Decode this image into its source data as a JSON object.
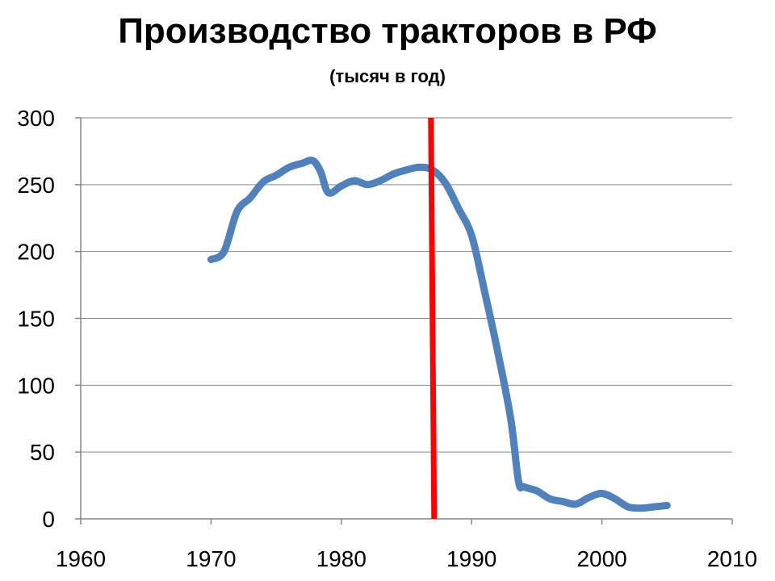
{
  "chart_data": {
    "type": "line",
    "title": "Производство тракторов в РФ",
    "subtitle": "(тысяч в год)",
    "xlabel": "",
    "ylabel": "",
    "xlim": [
      1960,
      2010
    ],
    "ylim": [
      0,
      300
    ],
    "x_ticks": [
      1960,
      1970,
      1980,
      1990,
      2000,
      2010
    ],
    "y_ticks": [
      0,
      50,
      100,
      150,
      200,
      250,
      300
    ],
    "grid": true,
    "legend": "none",
    "series": [
      {
        "color": "#4F81BD",
        "x": [
          1970,
          1971,
          1972,
          1973,
          1974,
          1975,
          1976,
          1977,
          1977.8,
          1978.4,
          1979,
          1980,
          1981,
          1982,
          1983,
          1984,
          1985,
          1986,
          1987,
          1988,
          1989,
          1990,
          1991,
          1992,
          1993,
          1993.6,
          1994,
          1995,
          1996,
          1997,
          1998,
          1999,
          2000,
          2001,
          2002,
          2003,
          2004,
          2005
        ],
        "y": [
          194,
          200,
          230,
          240,
          252,
          257,
          263,
          266,
          268,
          260,
          244,
          249,
          253,
          250,
          253,
          258,
          261,
          263,
          261,
          251,
          232,
          212,
          170,
          125,
          75,
          28,
          24,
          21,
          15,
          13,
          11,
          16,
          19,
          15,
          9,
          8,
          9,
          10
        ]
      }
    ],
    "reference_line": {
      "x": 1987,
      "color": "#FF0000"
    }
  }
}
